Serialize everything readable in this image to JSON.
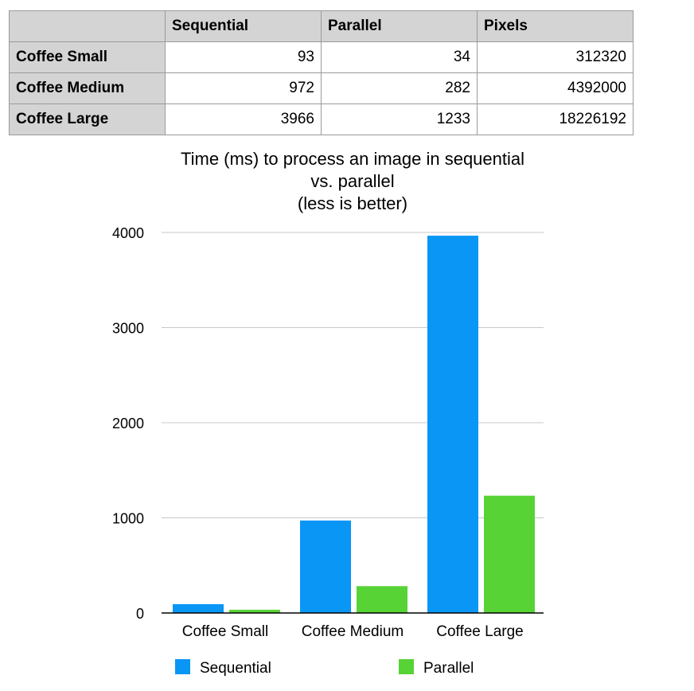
{
  "table": {
    "headers": [
      "",
      "Sequential",
      "Parallel",
      "Pixels"
    ],
    "rows": [
      {
        "label": "Coffee Small",
        "sequential": "93",
        "parallel": "34",
        "pixels": "312320"
      },
      {
        "label": "Coffee Medium",
        "sequential": "972",
        "parallel": "282",
        "pixels": "4392000"
      },
      {
        "label": "Coffee Large",
        "sequential": "3966",
        "parallel": "1233",
        "pixels": "18226192"
      }
    ]
  },
  "chart_data": {
    "type": "bar",
    "title_lines": [
      "Time (ms) to process an image in sequential",
      "vs. parallel",
      "(less is better)"
    ],
    "categories": [
      "Coffee Small",
      "Coffee Medium",
      "Coffee Large"
    ],
    "series": [
      {
        "name": "Sequential",
        "values": [
          93,
          972,
          3966
        ],
        "color": "#0a96f5"
      },
      {
        "name": "Parallel",
        "values": [
          34,
          282,
          1233
        ],
        "color": "#57d336"
      }
    ],
    "ylim": [
      0,
      4000
    ],
    "yticks": [
      "0",
      "1000",
      "2000",
      "3000",
      "4000"
    ],
    "grid": true,
    "legend_position": "bottom"
  }
}
